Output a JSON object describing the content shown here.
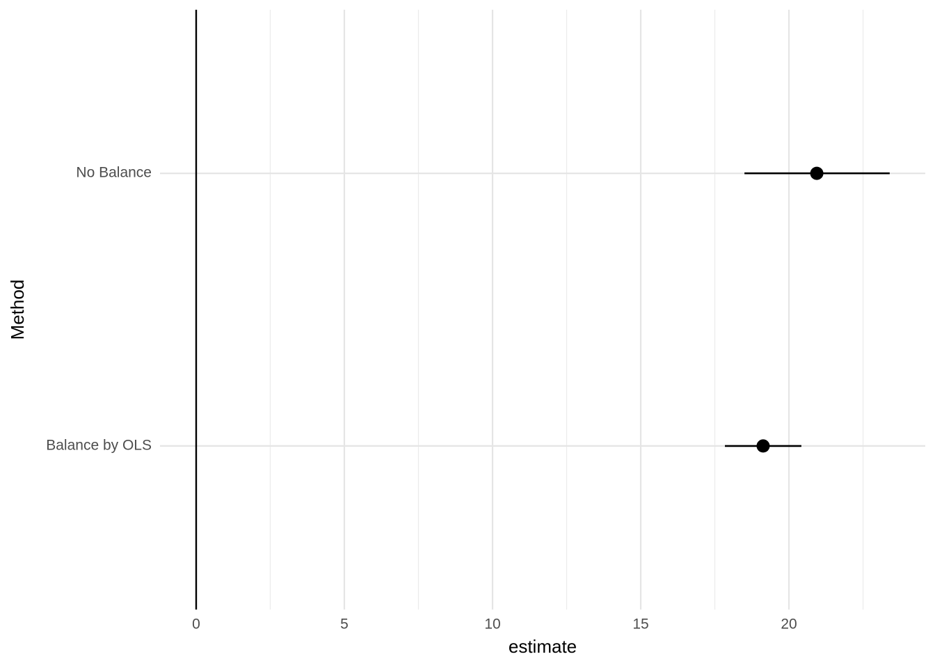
{
  "chart_data": {
    "type": "dot-whisker",
    "x_label": "estimate",
    "y_label": "Method",
    "categories": [
      "Balance by OLS",
      "No Balance"
    ],
    "values": [
      19.13,
      20.94
    ],
    "lower": [
      17.84,
      18.5
    ],
    "upper": [
      20.42,
      23.4
    ],
    "color": "#000000",
    "xlim": [
      -1.22,
      24.6
    ],
    "xticks": [
      0,
      5,
      10,
      15,
      20
    ],
    "minor_xticks": [
      2.5,
      7.5,
      12.5,
      17.5,
      22.5
    ],
    "reference_line": 0,
    "grid": true
  }
}
